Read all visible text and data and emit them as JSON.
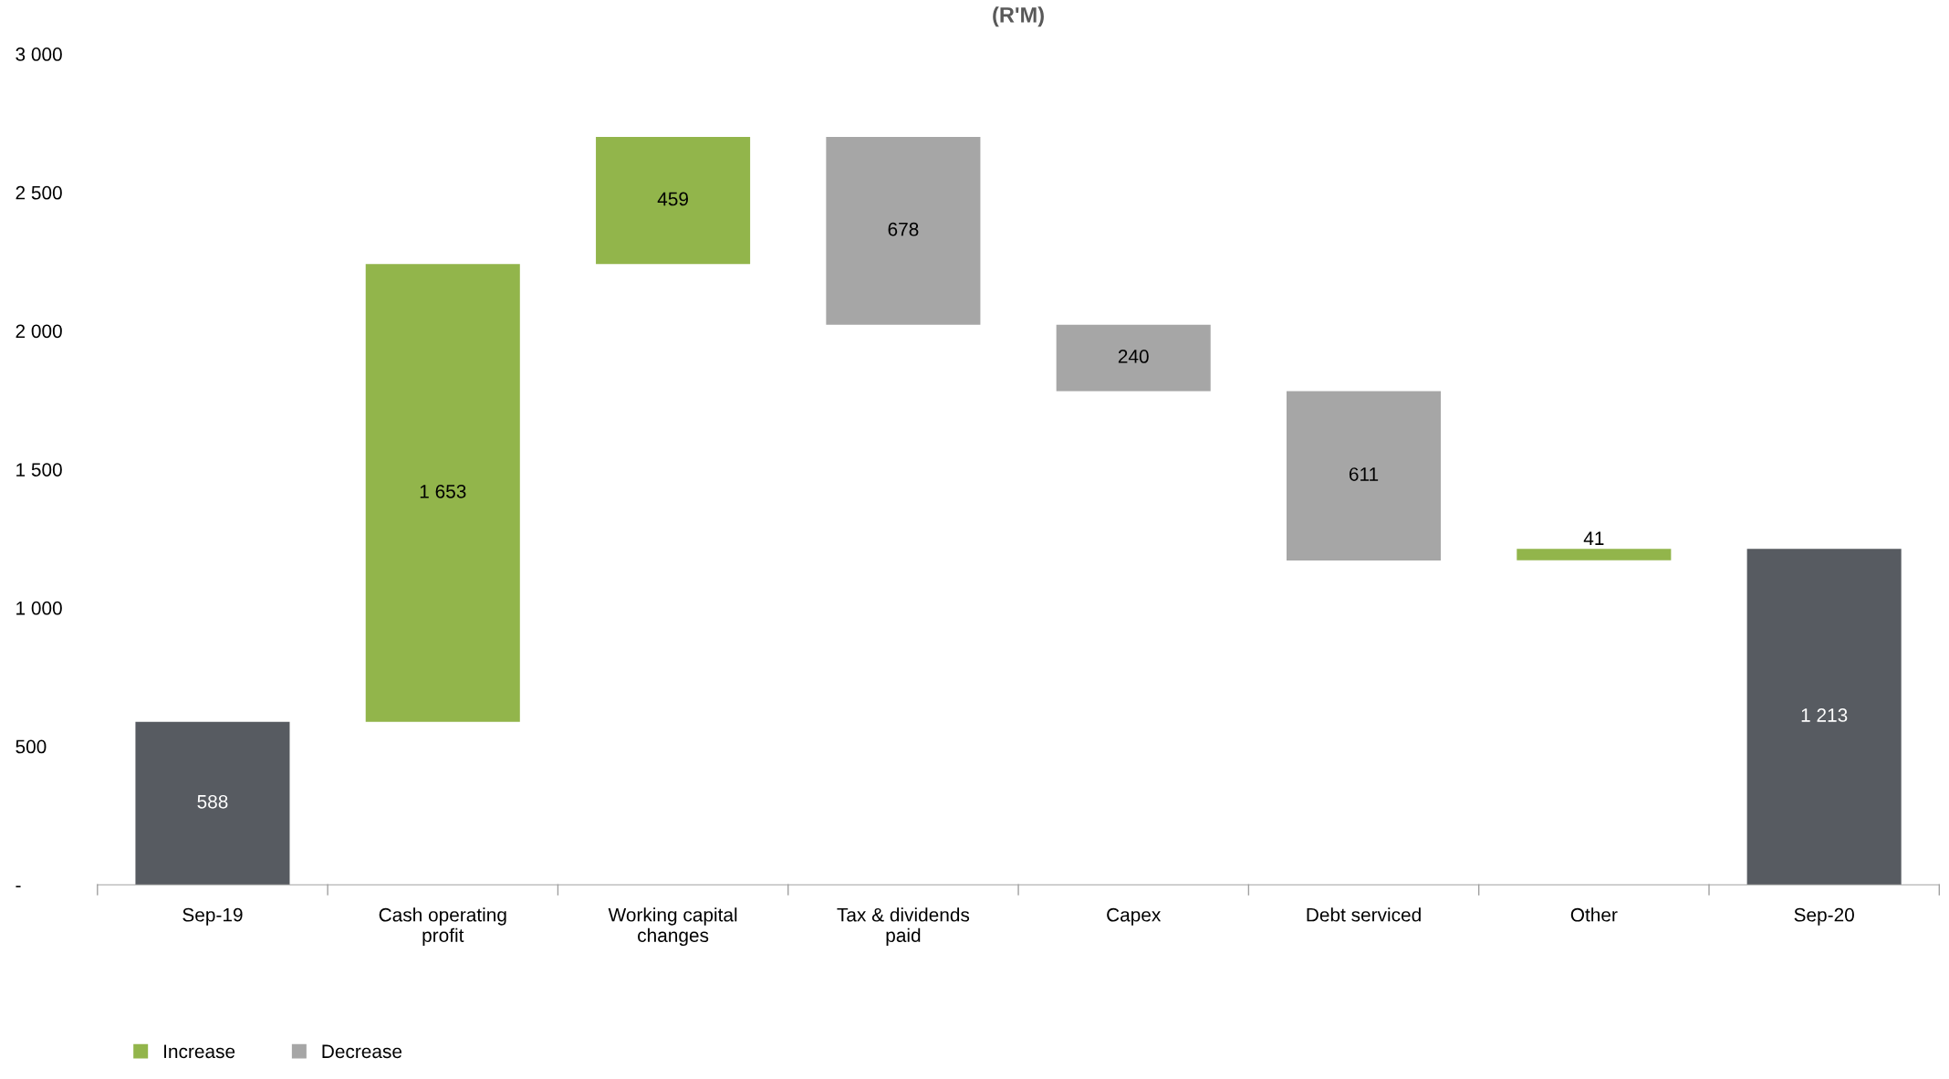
{
  "chart_data": {
    "type": "bar",
    "title": "(R'M)",
    "categories": [
      "Sep-19",
      "Cash operating profit",
      "Working capital changes",
      "Tax & dividends paid",
      "Capex",
      "Debt serviced",
      "Other",
      "Sep-20"
    ],
    "series": [
      {
        "name": "Increase",
        "color": "#92b54b",
        "values": [
          null,
          1653,
          459,
          null,
          null,
          null,
          41,
          null
        ],
        "base": [
          null,
          588,
          2241,
          null,
          null,
          null,
          1172,
          null
        ],
        "value_labels": [
          null,
          "1 653",
          "459",
          null,
          null,
          null,
          "41",
          null
        ]
      },
      {
        "name": "Decrease",
        "color": "#a6a6a6",
        "values": [
          null,
          null,
          null,
          678,
          240,
          611,
          null,
          null
        ],
        "base": [
          null,
          null,
          null,
          2022,
          1782,
          1171,
          null,
          null
        ],
        "value_labels": [
          null,
          null,
          null,
          "678",
          "240",
          "611",
          null,
          null
        ]
      },
      {
        "color": "#575b61",
        "values": [
          588,
          null,
          null,
          null,
          null,
          null,
          null,
          1213
        ],
        "base": [
          0,
          null,
          null,
          null,
          null,
          null,
          null,
          0
        ],
        "value_labels": [
          "588",
          null,
          null,
          null,
          null,
          null,
          null,
          "1 213"
        ]
      }
    ],
    "ylim": [
      0,
      3000
    ],
    "yticks": [
      {
        "value": 0,
        "label": "-"
      },
      500,
      {
        "value": 1000,
        "label": "1 000"
      },
      {
        "value": 1500,
        "label": "1 500"
      },
      {
        "value": 2000,
        "label": "2 000"
      },
      {
        "value": 2500,
        "label": "2 500"
      },
      {
        "value": 3000,
        "label": "3 000"
      }
    ],
    "grid": false,
    "legend": "bottom left"
  }
}
